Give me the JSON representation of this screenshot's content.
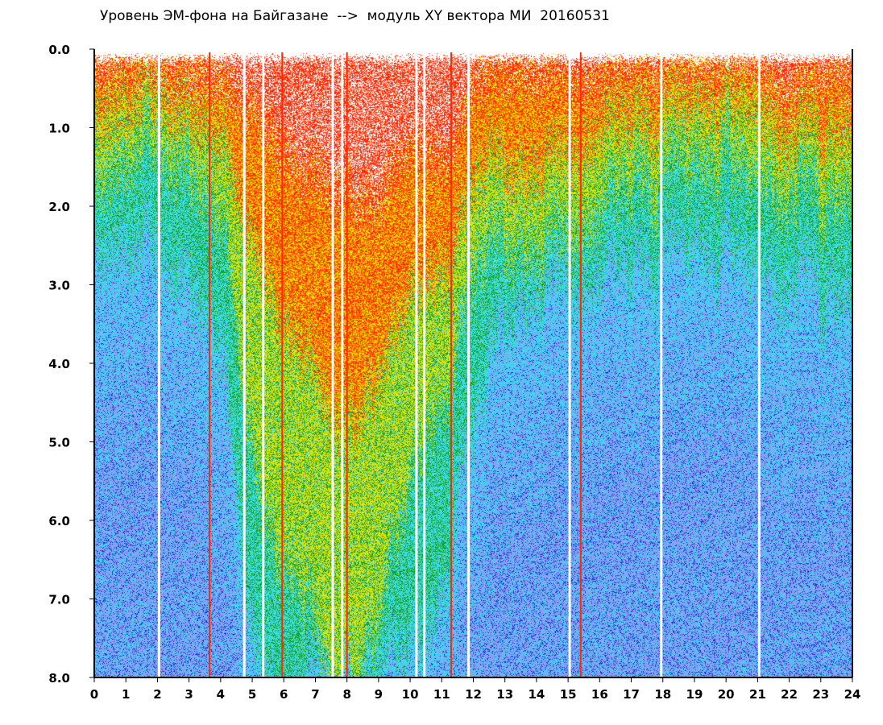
{
  "chart_data": {
    "type": "heatmap",
    "title": "Уровень ЭМ-фона на Байгазане  -->  модуль XY вектора МИ  20160531",
    "xlabel": "",
    "ylabel": "",
    "xlim": [
      0,
      24
    ],
    "ylim": [
      8.0,
      0.0
    ],
    "y_axis_inverted": true,
    "x_ticks": [
      "0",
      "1",
      "2",
      "3",
      "4",
      "5",
      "6",
      "7",
      "8",
      "9",
      "10",
      "11",
      "12",
      "13",
      "14",
      "15",
      "16",
      "17",
      "18",
      "19",
      "20",
      "21",
      "22",
      "23",
      "24"
    ],
    "y_ticks": [
      "0.0",
      "1.0",
      "2.0",
      "3.0",
      "4.0",
      "5.0",
      "6.0",
      "7.0",
      "8.0"
    ],
    "grid": false,
    "colors": {
      "red": "#ff2a00",
      "yellow": "#e6e600",
      "green": "#1aa01a",
      "cyan": "#33e0f0",
      "light_blue": "#8a9cf0",
      "dark_blue": "#2a2ad8"
    },
    "band_boundaries_by_hour": {
      "hours": [
        0,
        1,
        2,
        3,
        4,
        4.5,
        5,
        5.5,
        6,
        6.5,
        7,
        7.5,
        8,
        8.5,
        9,
        9.5,
        10,
        10.5,
        11,
        11.5,
        12,
        12.5,
        13,
        13.5,
        14,
        15,
        16,
        17,
        18,
        19,
        20,
        21,
        22,
        23,
        24
      ],
      "red": [
        0.2,
        0.2,
        0.2,
        0.25,
        0.4,
        0.7,
        0.8,
        1.0,
        1.2,
        1.5,
        1.6,
        1.8,
        1.8,
        1.9,
        2.0,
        1.7,
        1.4,
        1.3,
        1.4,
        1.2,
        0.4,
        0.3,
        0.3,
        0.3,
        0.3,
        0.3,
        0.3,
        0.2,
        0.2,
        0.2,
        0.2,
        0.2,
        0.6,
        0.3,
        0.3
      ],
      "yellow": [
        0.7,
        0.7,
        0.6,
        0.7,
        1.1,
        1.8,
        2.5,
        3.0,
        3.3,
        3.6,
        4.2,
        4.6,
        4.6,
        4.4,
        4.2,
        3.8,
        3.3,
        3.0,
        2.7,
        2.4,
        1.6,
        1.4,
        1.6,
        1.6,
        1.4,
        1.2,
        0.9,
        0.8,
        0.8,
        0.8,
        0.8,
        0.8,
        1.1,
        1.0,
        0.9
      ],
      "green": [
        1.4,
        1.4,
        1.3,
        1.4,
        2.2,
        3.6,
        5.2,
        6.0,
        6.4,
        6.6,
        7.4,
        8.0,
        8.0,
        7.6,
        7.2,
        6.6,
        5.8,
        5.0,
        4.4,
        3.8,
        2.7,
        2.5,
        2.6,
        2.6,
        2.4,
        2.2,
        1.8,
        1.6,
        1.6,
        1.6,
        1.6,
        1.7,
        1.9,
        1.8,
        1.7
      ],
      "cyan": [
        2.3,
        2.5,
        2.6,
        2.8,
        3.8,
        5.6,
        7.6,
        8.0,
        8.0,
        8.0,
        8.0,
        8.0,
        8.0,
        8.0,
        8.0,
        8.0,
        8.0,
        7.6,
        6.8,
        5.8,
        4.6,
        4.0,
        3.6,
        3.3,
        3.0,
        2.8,
        2.6,
        2.6,
        2.6,
        2.7,
        2.8,
        2.9,
        3.1,
        3.0,
        2.9
      ]
    },
    "gap_lines_hours": [
      2.05,
      3.65,
      4.75,
      5.35,
      5.95,
      7.55,
      7.85,
      8.0,
      10.2,
      10.45,
      11.3,
      11.85,
      15.05,
      15.4,
      17.95,
      21.05
    ]
  }
}
